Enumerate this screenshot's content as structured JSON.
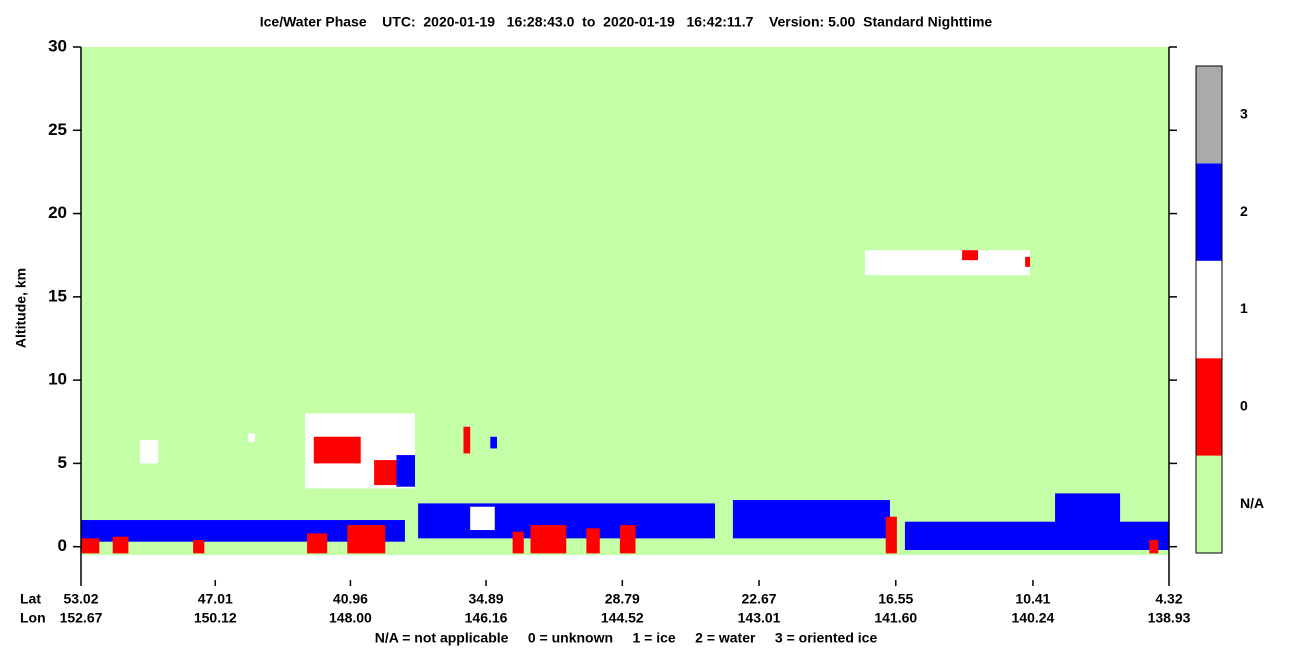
{
  "chart_data": {
    "type": "feature-mask",
    "title": "Ice/Water Phase    UTC:  2020-01-19   16:28:43.0  to  2020-01-19   16:42:11.7    Version: 5.00  Standard Nighttime",
    "ylabel": "Altitude, km",
    "ylim": [
      -2,
      30
    ],
    "yticks": [
      0,
      5,
      10,
      15,
      20,
      25,
      30
    ],
    "xlim": [
      53.02,
      4.32
    ],
    "xrow_labels": [
      "Lat",
      "Lon"
    ],
    "lat_ticks": [
      53.02,
      47.01,
      40.96,
      34.89,
      28.79,
      22.67,
      16.55,
      10.41,
      4.32
    ],
    "lon_ticks": [
      152.67,
      150.12,
      {
        "value": 148,
        "label": "148.00"
      },
      146.16,
      144.52,
      143.01,
      {
        "value": 141.6,
        "label": "141.60"
      },
      140.24,
      138.93
    ],
    "footer": "N/A = not applicable     0 = unknown     1 = ice     2 = water     3 = oriented ice",
    "classes": [
      {
        "label": "N/A",
        "color": "#c4ffa8"
      },
      {
        "label": "0",
        "color": "#ff0000"
      },
      {
        "label": "1",
        "color": "#ffffff"
      },
      {
        "label": "2",
        "color": "#0000ff"
      },
      {
        "label": "3",
        "color": "#aaaaaa"
      }
    ],
    "features": [
      {
        "lat": [
          53.02,
          38.52
        ],
        "alt": [
          0.3,
          1.6
        ],
        "class": 2
      },
      {
        "lat": [
          53.0,
          52.2
        ],
        "alt": [
          -0.4,
          0.5
        ],
        "class": 0
      },
      {
        "lat": [
          51.6,
          50.9
        ],
        "alt": [
          -0.4,
          0.6
        ],
        "class": 0
      },
      {
        "lat": [
          48.0,
          47.5
        ],
        "alt": [
          -0.4,
          0.4
        ],
        "class": 0
      },
      {
        "lat": [
          42.9,
          42.0
        ],
        "alt": [
          -0.4,
          0.8
        ],
        "class": 0
      },
      {
        "lat": [
          41.1,
          39.4
        ],
        "alt": [
          -0.4,
          1.3
        ],
        "class": 0
      },
      {
        "lat": [
          50.38,
          49.57
        ],
        "alt": [
          5.0,
          6.4
        ],
        "class": 1
      },
      {
        "lat": [
          45.55,
          45.23
        ],
        "alt": [
          6.3,
          6.8
        ],
        "class": 1
      },
      {
        "lat": [
          42.99,
          38.07
        ],
        "alt": [
          3.5,
          8.0
        ],
        "class": 1
      },
      {
        "lat": [
          42.6,
          40.5
        ],
        "alt": [
          5.0,
          6.6
        ],
        "class": 0
      },
      {
        "lat": [
          39.9,
          38.6
        ],
        "alt": [
          3.7,
          5.2
        ],
        "class": 0
      },
      {
        "lat": [
          38.9,
          38.07
        ],
        "alt": [
          3.6,
          5.5
        ],
        "class": 2
      },
      {
        "lat": [
          34.7,
          34.4
        ],
        "alt": [
          5.9,
          6.6
        ],
        "class": 2
      },
      {
        "lat": [
          35.9,
          35.6
        ],
        "alt": [
          5.6,
          7.2
        ],
        "class": 0
      },
      {
        "lat": [
          37.93,
          24.64
        ],
        "alt": [
          0.5,
          2.6
        ],
        "class": 2
      },
      {
        "lat": [
          35.6,
          34.5
        ],
        "alt": [
          1.0,
          2.4
        ],
        "class": 1
      },
      {
        "lat": [
          33.7,
          33.2
        ],
        "alt": [
          -0.4,
          0.9
        ],
        "class": 0
      },
      {
        "lat": [
          32.9,
          31.3
        ],
        "alt": [
          -0.4,
          1.3
        ],
        "class": 0
      },
      {
        "lat": [
          30.4,
          29.8
        ],
        "alt": [
          -0.4,
          1.1
        ],
        "class": 0
      },
      {
        "lat": [
          28.9,
          28.2
        ],
        "alt": [
          -0.4,
          1.3
        ],
        "class": 0
      },
      {
        "lat": [
          23.84,
          16.81
        ],
        "alt": [
          0.5,
          2.8
        ],
        "class": 2
      },
      {
        "lat": [
          17.0,
          16.5
        ],
        "alt": [
          -0.4,
          1.8
        ],
        "class": 0
      },
      {
        "lat": [
          16.14,
          4.32
        ],
        "alt": [
          -0.2,
          1.5
        ],
        "class": 2
      },
      {
        "lat": [
          9.42,
          6.51
        ],
        "alt": [
          0.0,
          3.2
        ],
        "class": 2
      },
      {
        "lat": [
          5.2,
          4.8
        ],
        "alt": [
          -0.4,
          0.4
        ],
        "class": 0
      },
      {
        "lat": [
          17.93,
          10.54
        ],
        "alt": [
          16.3,
          17.8
        ],
        "class": 1
      },
      {
        "lat": [
          13.58,
          12.87
        ],
        "alt": [
          17.2,
          17.8
        ],
        "class": 0
      },
      {
        "lat": [
          10.76,
          10.54
        ],
        "alt": [
          16.8,
          17.4
        ],
        "class": 0
      }
    ]
  }
}
